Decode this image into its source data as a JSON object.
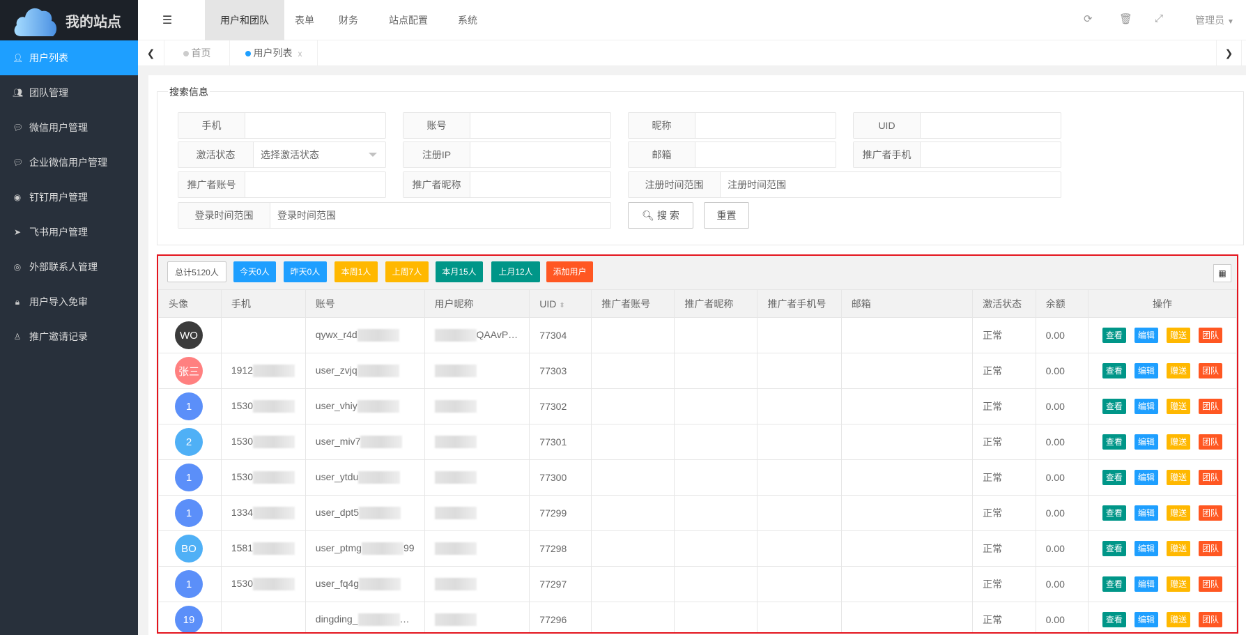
{
  "app": {
    "title": "我的站点"
  },
  "sidebar": {
    "items": [
      {
        "label": "用户列表",
        "icon": "user-icon",
        "active": true
      },
      {
        "label": "团队管理",
        "icon": "users-icon"
      },
      {
        "label": "微信用户管理",
        "icon": "wechat-icon"
      },
      {
        "label": "企业微信用户管理",
        "icon": "wechat-work-icon"
      },
      {
        "label": "钉钉用户管理",
        "icon": "dingtalk-icon"
      },
      {
        "label": "飞书用户管理",
        "icon": "paper-plane-icon"
      },
      {
        "label": "外部联系人管理",
        "icon": "user-circle-icon"
      },
      {
        "label": "用户导入免审",
        "icon": "lock-user-icon"
      },
      {
        "label": "推广邀请记录",
        "icon": "user-outline-icon"
      }
    ]
  },
  "header": {
    "nav": [
      "用户和团队",
      "表单",
      "财务",
      "站点配置",
      "系统"
    ],
    "active": "用户和团队",
    "user": "管理员"
  },
  "tabs": {
    "items": [
      {
        "label": "首页"
      },
      {
        "label": "用户列表",
        "active": true
      }
    ]
  },
  "search": {
    "legend": "搜索信息",
    "fields": {
      "phone": "手机",
      "account": "账号",
      "nickname": "昵称",
      "uid": "UID",
      "status": "激活状态",
      "status_placeholder": "选择激活状态",
      "reg_ip": "注册IP",
      "email": "邮箱",
      "promoter_phone": "推广者手机",
      "promoter_account": "推广者账号",
      "promoter_nick": "推广者昵称",
      "reg_range": "注册时间范围",
      "reg_range_placeholder": "注册时间范围",
      "login_range": "登录时间范围",
      "login_range_placeholder": "登录时间范围"
    },
    "search_btn": "搜 索",
    "reset_btn": "重置"
  },
  "toolbar": {
    "total": "总计5120人",
    "today": "今天0人",
    "yesterday": "昨天0人",
    "this_week": "本周1人",
    "last_week": "上周7人",
    "this_month": "本月15人",
    "last_month": "上月12人",
    "add": "添加用户"
  },
  "colors": {
    "blue": "#1e9fff",
    "yellow": "#ffb800",
    "green": "#009688",
    "orange": "#ff5722",
    "sidebar": "#28303b"
  },
  "table": {
    "columns": [
      "头像",
      "手机",
      "账号",
      "用户昵称",
      "UID",
      "推广者账号",
      "推广者昵称",
      "推广者手机号",
      "邮箱",
      "激活状态",
      "余额",
      "操作"
    ],
    "actions": [
      "查看",
      "编辑",
      "赠送",
      "团队"
    ],
    "rows": [
      {
        "avatar": "WO",
        "avatar_color": "#3b3b3b",
        "phone": "",
        "account": "qywx_r4d",
        "nick": "QAAvP…",
        "uid": "77304",
        "status": "正常",
        "balance": "0.00"
      },
      {
        "avatar": "张三",
        "avatar_color": "#ff8080",
        "phone": "1912",
        "account": "user_zvjq",
        "nick": "",
        "uid": "77303",
        "status": "正常",
        "balance": "0.00"
      },
      {
        "avatar": "1",
        "avatar_color": "#5b8ff9",
        "phone": "1530",
        "account": "user_vhiy",
        "nick": "",
        "uid": "77302",
        "status": "正常",
        "balance": "0.00"
      },
      {
        "avatar": "2",
        "avatar_color": "#4fb0f6",
        "phone": "1530",
        "account": "user_miv7",
        "nick": "",
        "uid": "77301",
        "status": "正常",
        "balance": "0.00"
      },
      {
        "avatar": "1",
        "avatar_color": "#5b8ff9",
        "phone": "1530",
        "account": "user_ytdu",
        "nick": "",
        "uid": "77300",
        "status": "正常",
        "balance": "0.00"
      },
      {
        "avatar": "1",
        "avatar_color": "#5b8ff9",
        "phone": "1334",
        "account": "user_dpt5",
        "nick": "",
        "uid": "77299",
        "status": "正常",
        "balance": "0.00"
      },
      {
        "avatar": "BO",
        "avatar_color": "#4fb0f6",
        "phone": "1581",
        "account": "user_ptmg",
        "account_suffix": "99",
        "nick": "",
        "uid": "77298",
        "status": "正常",
        "balance": "0.00"
      },
      {
        "avatar": "1",
        "avatar_color": "#5b8ff9",
        "phone": "1530",
        "account": "user_fq4g",
        "nick": "",
        "uid": "77297",
        "status": "正常",
        "balance": "0.00"
      },
      {
        "avatar": "19",
        "avatar_color": "#5b8ff9",
        "phone": "",
        "account": "dingding_",
        "account_suffix": "…",
        "nick": "",
        "uid": "77296",
        "status": "正常",
        "balance": "0.00"
      }
    ]
  }
}
